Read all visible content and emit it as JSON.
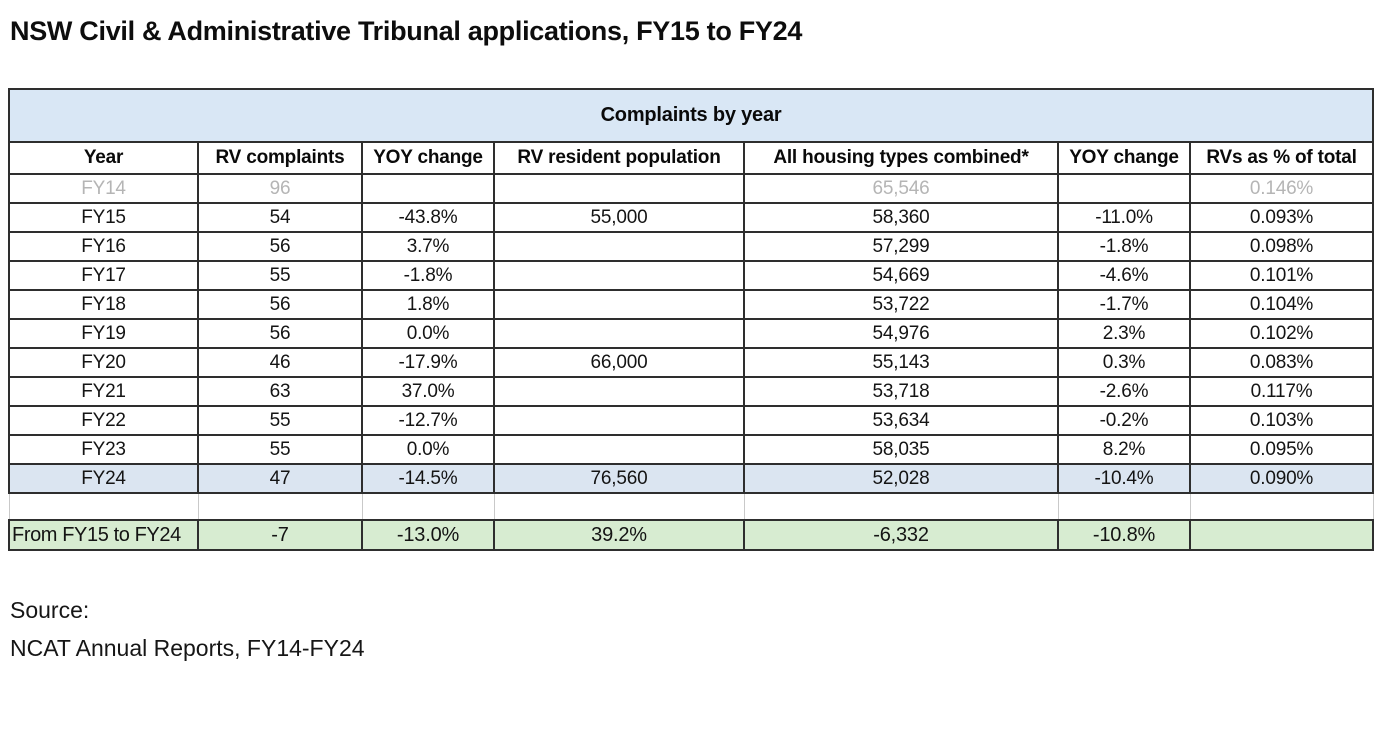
{
  "title": "NSW Civil & Administrative Tribunal applications, FY15 to FY24",
  "chart_data": {
    "type": "table",
    "banner": "Complaints by year",
    "columns": [
      "Year",
      "RV complaints",
      "YOY change",
      "RV resident population",
      "All housing types combined*",
      "YOY change",
      "RVs as % of total"
    ],
    "rows": [
      {
        "style": "muted",
        "cells": [
          "FY14",
          "96",
          "",
          "",
          "65,546",
          "",
          "0.146%"
        ]
      },
      {
        "style": "",
        "cells": [
          "FY15",
          "54",
          "-43.8%",
          "55,000",
          "58,360",
          "-11.0%",
          "0.093%"
        ]
      },
      {
        "style": "",
        "cells": [
          "FY16",
          "56",
          "3.7%",
          "",
          "57,299",
          "-1.8%",
          "0.098%"
        ]
      },
      {
        "style": "",
        "cells": [
          "FY17",
          "55",
          "-1.8%",
          "",
          "54,669",
          "-4.6%",
          "0.101%"
        ]
      },
      {
        "style": "",
        "cells": [
          "FY18",
          "56",
          "1.8%",
          "",
          "53,722",
          "-1.7%",
          "0.104%"
        ]
      },
      {
        "style": "",
        "cells": [
          "FY19",
          "56",
          "0.0%",
          "",
          "54,976",
          "2.3%",
          "0.102%"
        ]
      },
      {
        "style": "",
        "cells": [
          "FY20",
          "46",
          "-17.9%",
          "66,000",
          "55,143",
          "0.3%",
          "0.083%"
        ]
      },
      {
        "style": "",
        "cells": [
          "FY21",
          "63",
          "37.0%",
          "",
          "53,718",
          "-2.6%",
          "0.117%"
        ]
      },
      {
        "style": "",
        "cells": [
          "FY22",
          "55",
          "-12.7%",
          "",
          "53,634",
          "-0.2%",
          "0.103%"
        ]
      },
      {
        "style": "",
        "cells": [
          "FY23",
          "55",
          "0.0%",
          "",
          "58,035",
          "8.2%",
          "0.095%"
        ]
      },
      {
        "style": "highlight",
        "cells": [
          "FY24",
          "47",
          "-14.5%",
          "76,560",
          "52,028",
          "-10.4%",
          "0.090%"
        ]
      }
    ],
    "summary": {
      "cells": [
        "From FY15 to FY24",
        "-7",
        "-13.0%",
        "39.2%",
        "-6,332",
        "-10.8%",
        ""
      ]
    }
  },
  "footer": {
    "source_label": "Source:",
    "source_detail": "NCAT Annual Reports, FY14-FY24"
  },
  "colors": {
    "banner_blue": "#d9e7f5",
    "highlight_blue": "#dbe5f1",
    "summary_green": "#d7ecd1",
    "border_dark": "#2e2e2e",
    "border_light": "#c9c9c9",
    "muted_text": "#b5b5b5"
  }
}
